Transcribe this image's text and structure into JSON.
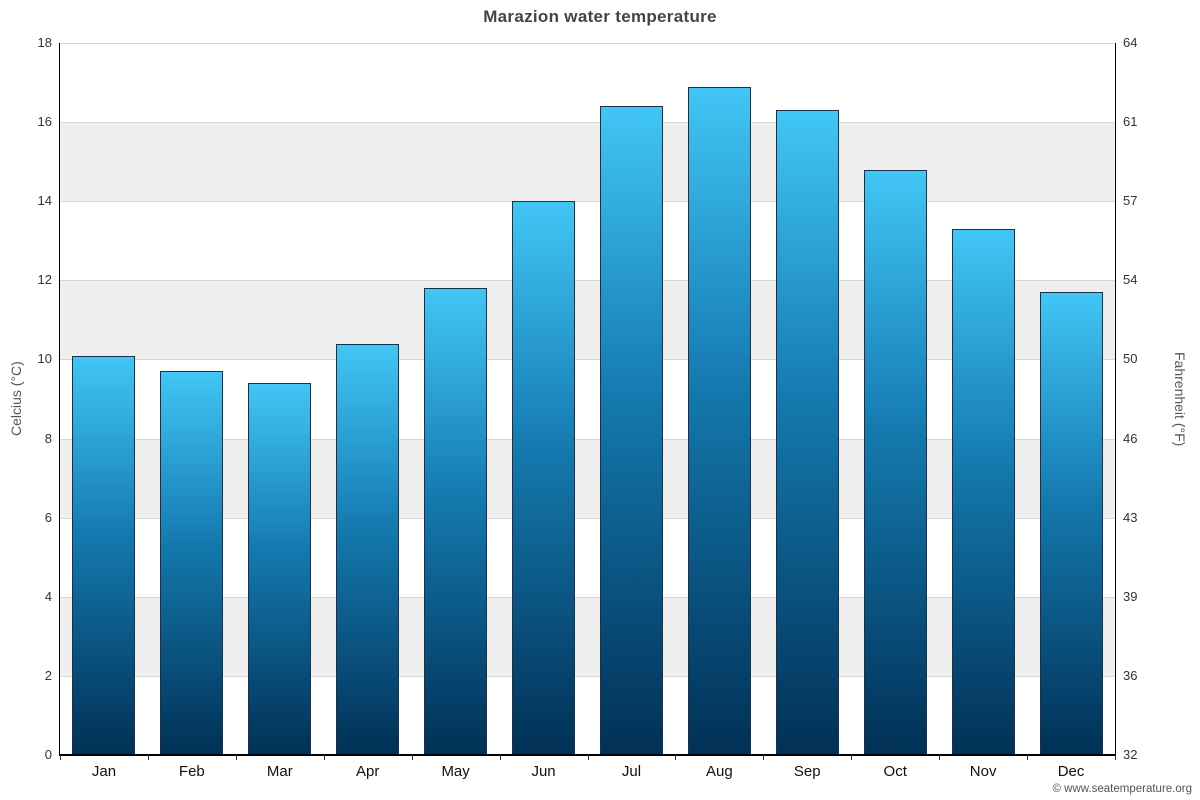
{
  "chart_data": {
    "type": "bar",
    "title": "Marazion water temperature",
    "categories": [
      "Jan",
      "Feb",
      "Mar",
      "Apr",
      "May",
      "Jun",
      "Jul",
      "Aug",
      "Sep",
      "Oct",
      "Nov",
      "Dec"
    ],
    "values": [
      10.1,
      9.7,
      9.4,
      10.4,
      11.8,
      14.0,
      16.4,
      16.9,
      16.3,
      14.8,
      13.3,
      11.7
    ],
    "xlabel": "",
    "ylabel": "Celcius (°C)",
    "ylabel_right": "Fahrenheit (°F)",
    "ylim": [
      0,
      18
    ],
    "yticks": [
      0,
      2,
      4,
      6,
      8,
      10,
      12,
      14,
      16,
      18
    ],
    "yticks_right_labels": [
      "32",
      "36",
      "39",
      "43",
      "46",
      "50",
      "54",
      "57",
      "61",
      "64"
    ],
    "grid": true,
    "legend": "none",
    "colors": {
      "bar_top": "#41c6f5",
      "bar_bottom": "#013055",
      "bar_border": "#16324c",
      "band": "#efefef",
      "gridline": "#d8d8d8",
      "axis": "#000000"
    },
    "credit": "© www.seatemperature.org"
  }
}
